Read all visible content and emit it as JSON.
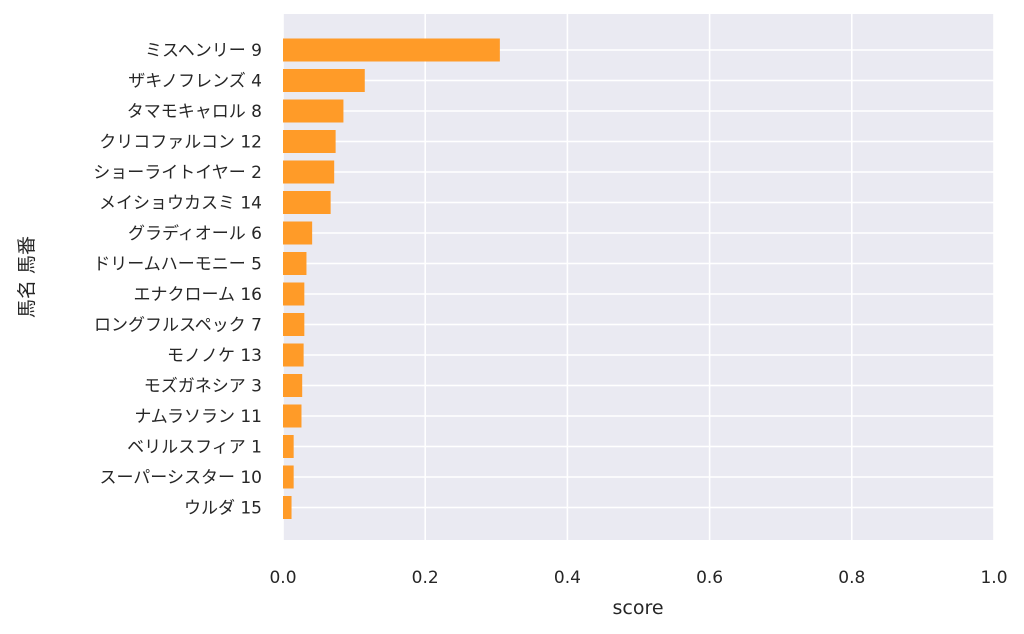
{
  "chart_data": {
    "type": "bar",
    "orientation": "horizontal",
    "xlabel": "score",
    "ylabel": "馬名 馬番",
    "xlim": [
      0,
      1.0
    ],
    "xticks": [
      "0.0",
      "0.2",
      "0.4",
      "0.6",
      "0.8",
      "1.0"
    ],
    "grid": true,
    "bar_color": "#ff9b28",
    "background_color": "#eaeaf2",
    "categories": [
      "ミスヘンリー 9",
      "ザキノフレンズ 4",
      "タマモキャロル 8",
      "クリコファルコン 12",
      "ショーライトイヤー 2",
      "メイショウカスミ 14",
      "グラディオール 6",
      "ドリームハーモニー 5",
      "エナクローム 16",
      "ロングフルスペック 7",
      "モノノケ 13",
      "モズガネシア 3",
      "ナムラソラン 11",
      "ベリルスフィア 1",
      "スーパーシスター 10",
      "ウルダ 15"
    ],
    "values": [
      0.305,
      0.115,
      0.085,
      0.074,
      0.072,
      0.067,
      0.041,
      0.033,
      0.03,
      0.03,
      0.029,
      0.027,
      0.026,
      0.015,
      0.015,
      0.012
    ]
  }
}
